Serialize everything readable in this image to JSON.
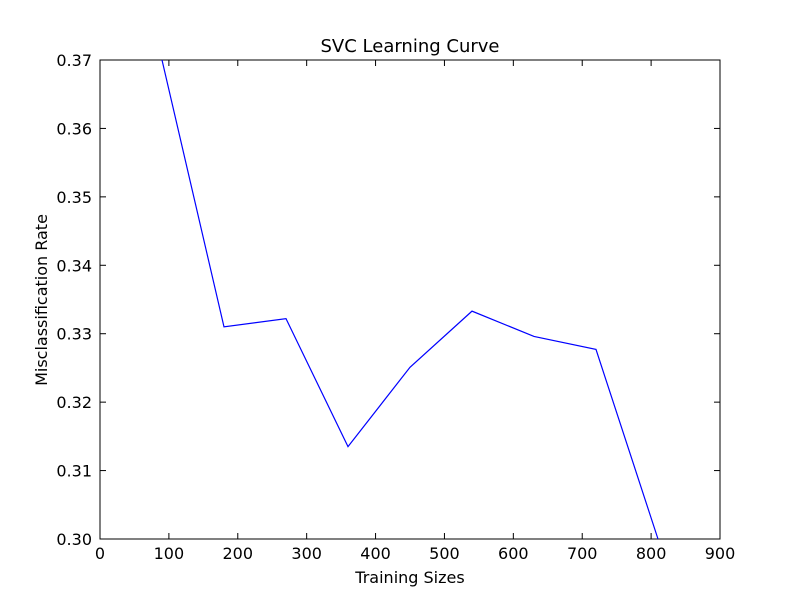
{
  "chart_data": {
    "type": "line",
    "title": "SVC Learning Curve",
    "xlabel": "Training Sizes",
    "ylabel": "Misclassification Rate",
    "xlim": [
      0,
      900
    ],
    "ylim": [
      0.3,
      0.37
    ],
    "xticks": [
      0,
      100,
      200,
      300,
      400,
      500,
      600,
      700,
      800,
      900
    ],
    "yticks": [
      0.3,
      0.31,
      0.32,
      0.33,
      0.34,
      0.35,
      0.36,
      0.37
    ],
    "xtick_labels": [
      "0",
      "100",
      "200",
      "300",
      "400",
      "500",
      "600",
      "700",
      "800",
      "900"
    ],
    "ytick_labels": [
      "0.30",
      "0.31",
      "0.32",
      "0.33",
      "0.34",
      "0.35",
      "0.36",
      "0.37"
    ],
    "grid": false,
    "series": [
      {
        "color": "#0000ff",
        "x": [
          90,
          180,
          270,
          360,
          450,
          540,
          630,
          720,
          810
        ],
        "y": [
          0.37,
          0.331,
          0.3322,
          0.3135,
          0.3251,
          0.3333,
          0.3296,
          0.3277,
          0.3
        ]
      }
    ]
  }
}
